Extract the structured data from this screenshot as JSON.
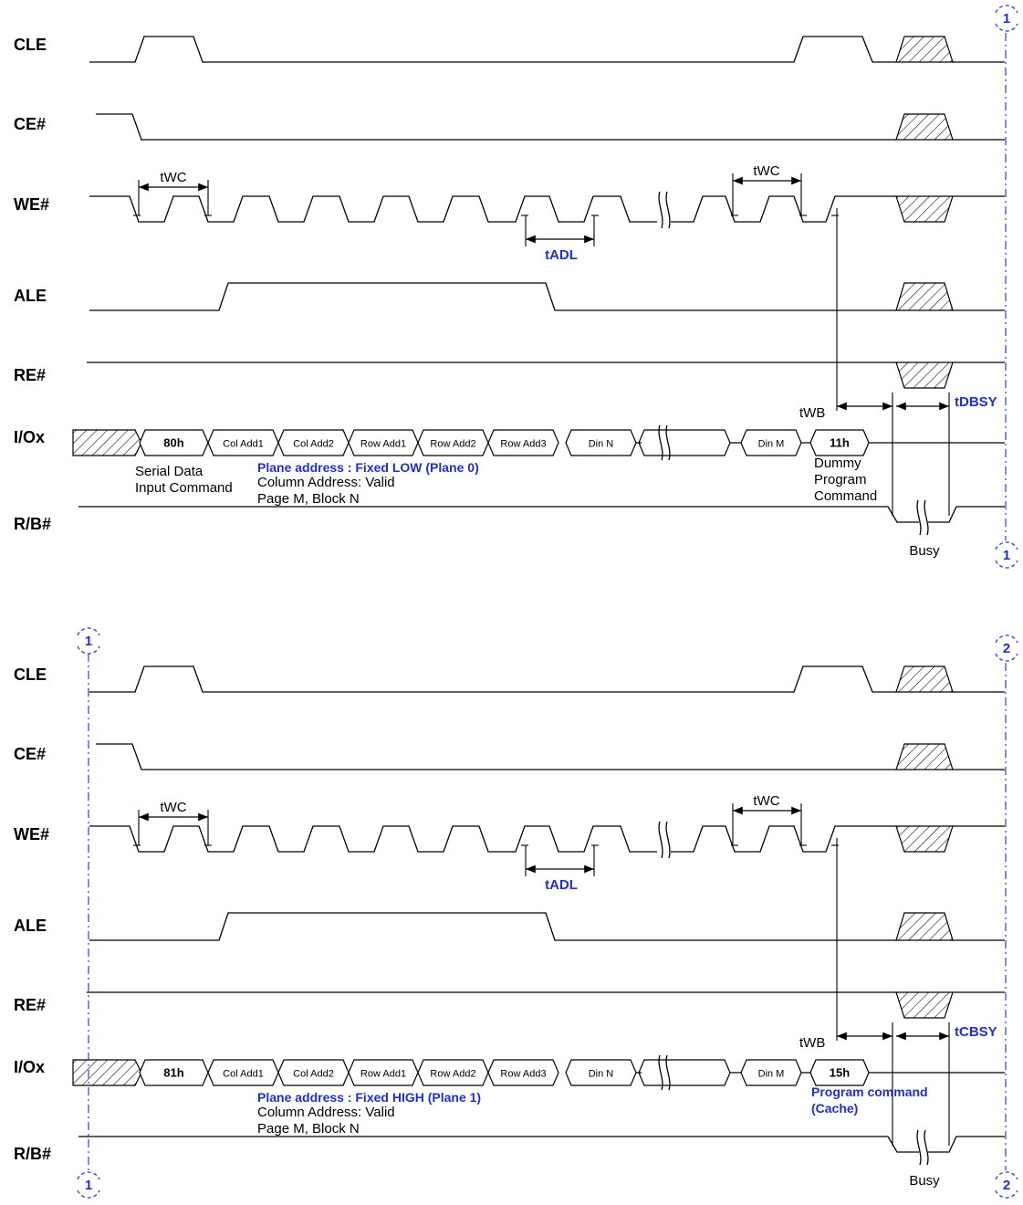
{
  "signals": [
    "CLE",
    "CE#",
    "WE#",
    "ALE",
    "RE#",
    "I/Ox",
    "R/B#"
  ],
  "panels": [
    {
      "bus_cmd": "80h",
      "bus_cells": [
        "Col Add1",
        "Col Add2",
        "Row Add1",
        "Row Add2",
        "Row Add3",
        "Din N",
        "Din M"
      ],
      "end_cmd": "11h",
      "twc_label": "tWC",
      "tadl_label": "tADL",
      "twb_label": "tWB",
      "busy_time_label": "tDBSY",
      "cmd_note_lines": [
        "Serial Data",
        "Input Command"
      ],
      "plane_note": "Plane address : Fixed LOW (Plane 0)",
      "addr_note_lines": [
        "Column Address: Valid",
        "Page M, Block N"
      ],
      "end_note_lines": [
        "Dummy",
        "Program",
        "Command"
      ],
      "end_note_style": "plain",
      "busy_label": "Busy",
      "markers": {
        "top_right": "1",
        "bottom_right": "1"
      }
    },
    {
      "bus_cmd": "81h",
      "bus_cells": [
        "Col Add1",
        "Col Add2",
        "Row Add1",
        "Row Add2",
        "Row Add3",
        "Din N",
        "Din M"
      ],
      "end_cmd": "15h",
      "twc_label": "tWC",
      "tadl_label": "tADL",
      "twb_label": "tWB",
      "busy_time_label": "tCBSY",
      "cmd_note_lines": [],
      "plane_note": "Plane address : Fixed HIGH (Plane 1)",
      "addr_note_lines": [
        "Column Address: Valid",
        "Page M, Block N"
      ],
      "end_note_lines": [
        "Program command",
        "(Cache)"
      ],
      "end_note_style": "blue",
      "busy_label": "Busy",
      "markers": {
        "top_left": "1",
        "top_right": "2",
        "bottom_left": "1",
        "bottom_right": "2"
      }
    }
  ]
}
